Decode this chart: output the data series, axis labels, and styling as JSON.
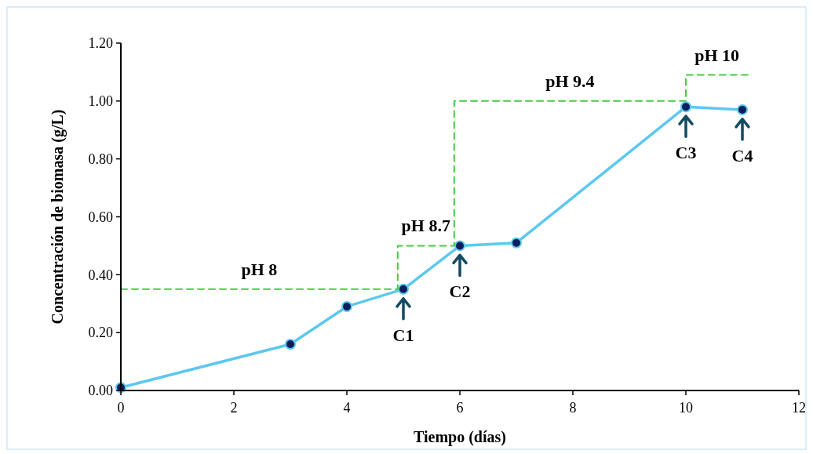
{
  "chart_data": {
    "type": "line",
    "xlabel": "Tiempo (días)",
    "ylabel": "Concentración de biomasa (g/L)",
    "xlim": [
      0,
      12
    ],
    "xticks": [
      0,
      2,
      4,
      6,
      8,
      10,
      12
    ],
    "ylim": [
      0,
      1.2
    ],
    "yticks": [
      {
        "value": 0,
        "label": "0.00"
      },
      {
        "value": 0.2,
        "label": "0.20"
      },
      {
        "value": 0.4,
        "label": "0.40"
      },
      {
        "value": 0.6,
        "label": "0.60"
      },
      {
        "value": 0.8,
        "label": "0.80"
      },
      {
        "value": 1.0,
        "label": "1.00"
      },
      {
        "value": 1.2,
        "label": "1.20"
      }
    ],
    "grid": false,
    "series": [
      {
        "color": "#5bc8f0",
        "marker": "circle",
        "line_style": "solid",
        "x": [
          0,
          3,
          4,
          5,
          6,
          7,
          10,
          11
        ],
        "values": [
          0.01,
          0.16,
          0.29,
          0.35,
          0.5,
          0.51,
          0.98,
          0.97
        ]
      },
      {
        "color": "#44cc44",
        "marker": "none",
        "line_style": "dashed",
        "x": [
          0,
          4.9,
          4.9,
          5.9,
          5.9,
          10,
          10,
          11.1
        ],
        "values": [
          0.35,
          0.35,
          0.5,
          0.5,
          1.0,
          1.0,
          1.09,
          1.09
        ]
      }
    ],
    "annotations": [
      "pH 8",
      "pH 8.7",
      "pH 9.4",
      "pH 10",
      {
        "text": "C1",
        "x": 5,
        "y": 0.35
      },
      {
        "text": "C2",
        "x": 6,
        "y": 0.5
      },
      {
        "text": "C3",
        "x": 10,
        "y": 0.98
      },
      {
        "text": "C4",
        "x": 11,
        "y": 0.97
      }
    ]
  }
}
